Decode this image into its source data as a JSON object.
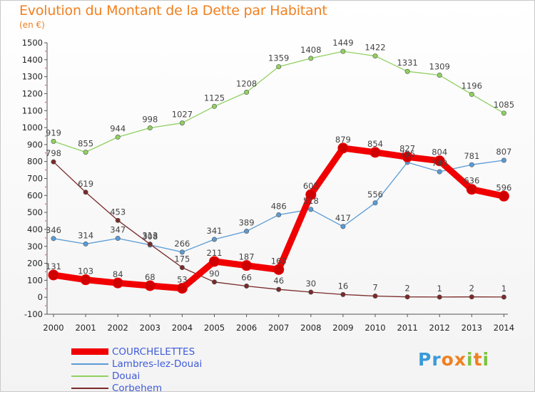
{
  "title": "Evolution du Montant de la Dette par Habitant",
  "unit_label": "(en €)",
  "logo": {
    "text": "Proxiti",
    "colors": [
      "#3a9ad9",
      "#3a9ad9",
      "#f08020",
      "#f08020",
      "#7cc440",
      "#f08020",
      "#7cc440"
    ]
  },
  "chart_data": {
    "type": "line",
    "title": "Evolution du Montant de la Dette par Habitant",
    "ylabel": "(en €)",
    "xlabel": "",
    "x": [
      "2000",
      "2001",
      "2002",
      "2003",
      "2004",
      "2005",
      "2006",
      "2007",
      "2008",
      "2009",
      "2010",
      "2011",
      "2012",
      "2013",
      "2014"
    ],
    "ylim": [
      -100,
      1500
    ],
    "yticks": [
      -100,
      0,
      100,
      200,
      300,
      400,
      500,
      600,
      700,
      800,
      900,
      1000,
      1100,
      1200,
      1300,
      1400,
      1500
    ],
    "grid": false,
    "legend_position": "bottom-left",
    "series": [
      {
        "name": "COURCHELETTES",
        "color": "#f00000",
        "emphasis": true,
        "values": [
          131,
          103,
          84,
          68,
          53,
          211,
          187,
          163,
          605,
          879,
          854,
          827,
          804,
          636,
          596
        ],
        "labels": [
          "131",
          "103",
          "84",
          "68",
          "53",
          "211",
          "187",
          "163",
          "605",
          "879",
          "854",
          "827",
          "804",
          "636",
          "596"
        ]
      },
      {
        "name": "Lambres-lez-Douai",
        "color": "#5a9bd5",
        "emphasis": false,
        "values": [
          346,
          314,
          347,
          308,
          266,
          341,
          389,
          486,
          518,
          417,
          556,
          795,
          740,
          781,
          807
        ],
        "labels": [
          "346",
          "314",
          "347",
          "308",
          "266",
          "341",
          "389",
          "486",
          "518",
          "417",
          "556",
          "795",
          "740",
          "781",
          "807"
        ]
      },
      {
        "name": "Douai",
        "color": "#90d060",
        "emphasis": false,
        "values": [
          919,
          855,
          944,
          998,
          1027,
          1125,
          1208,
          1359,
          1408,
          1449,
          1422,
          1331,
          1309,
          1196,
          1085
        ],
        "labels": [
          "919",
          "855",
          "944",
          "998",
          "1027",
          "1125",
          "1208",
          "1359",
          "1408",
          "1449",
          "1422",
          "1331",
          "1309",
          "1196",
          "1085"
        ]
      },
      {
        "name": "Corbehem",
        "color": "#7a2a2a",
        "emphasis": false,
        "values": [
          798,
          619,
          453,
          313,
          175,
          90,
          66,
          46,
          30,
          16,
          7,
          2,
          1,
          2,
          1
        ],
        "labels": [
          "798",
          "619",
          "453",
          "313",
          "175",
          "90",
          "66",
          "46",
          "30",
          "16",
          "7",
          "2",
          "1",
          "2",
          "1"
        ]
      }
    ]
  }
}
